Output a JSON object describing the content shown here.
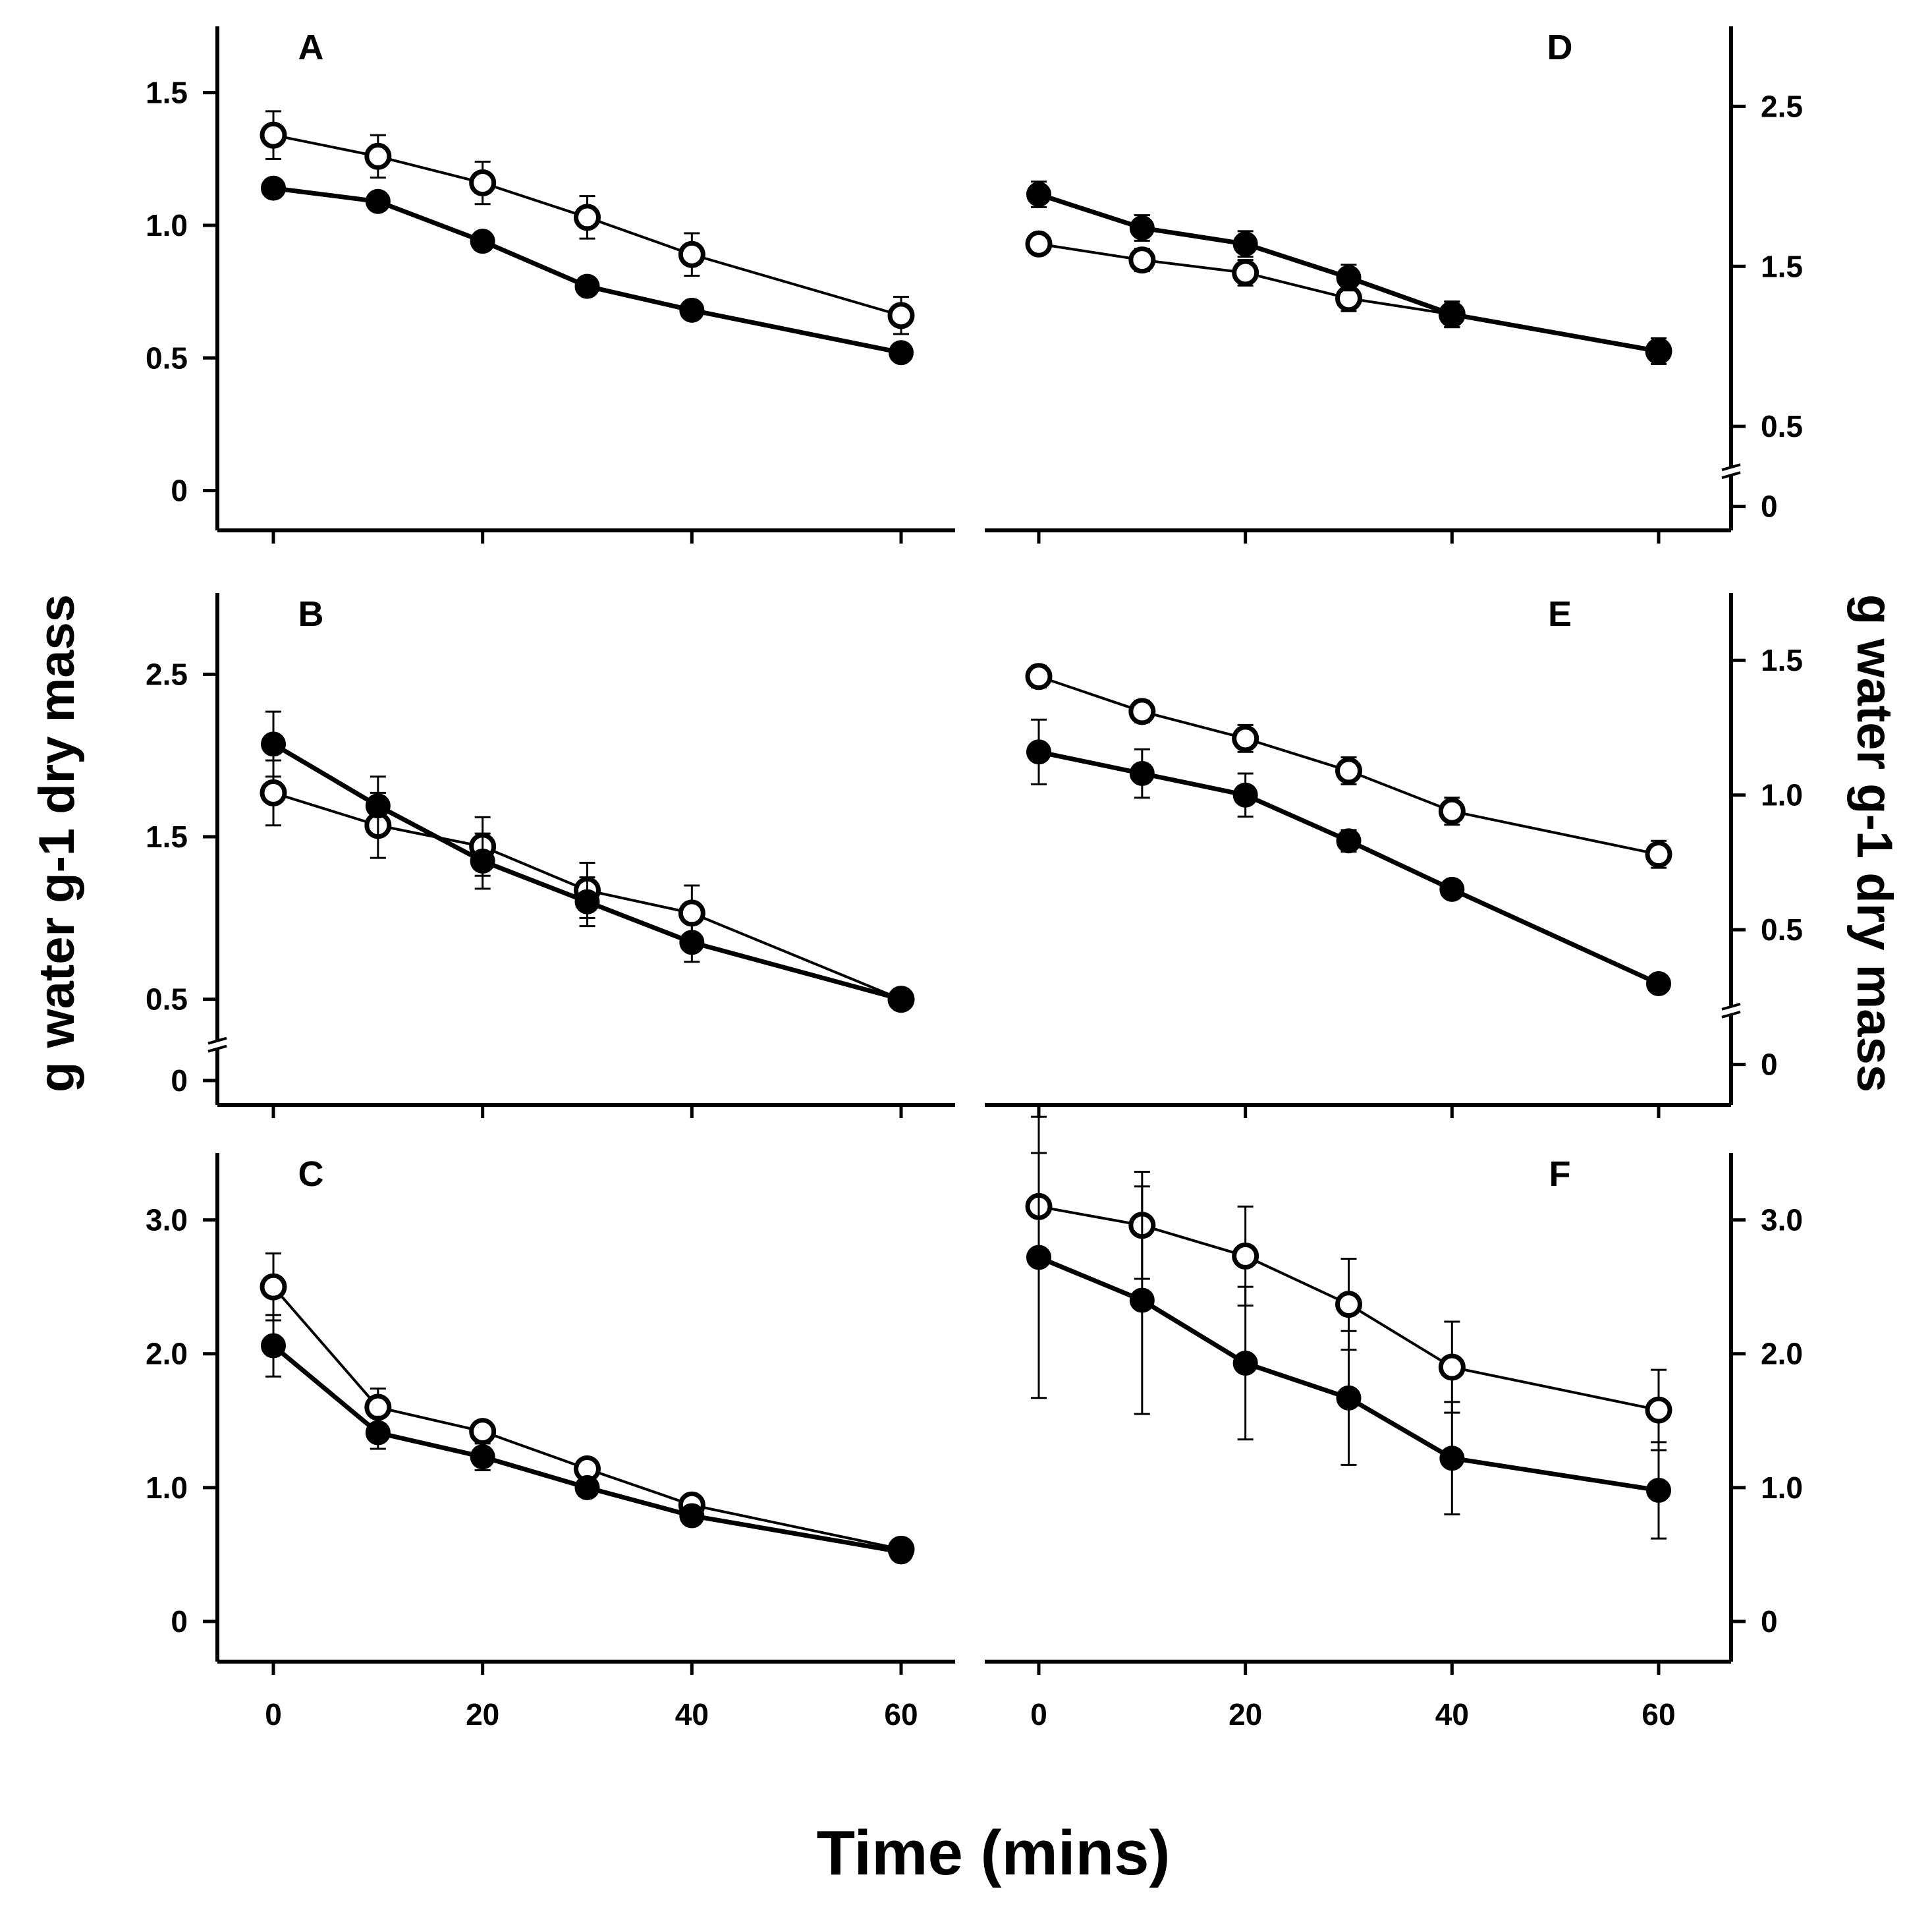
{
  "figure": {
    "ylabel_left": "g water g-1 dry mass",
    "ylabel_right": "g water g-1 dry mass",
    "xlabel": "Time (mins)",
    "x_ticks": [
      "0",
      "20",
      "40",
      "60"
    ]
  },
  "chart_data": [
    {
      "panel": "A",
      "type": "line",
      "axis_side": "left",
      "xlim": [
        -5,
        65
      ],
      "ylim": [
        -0.15,
        1.75
      ],
      "axis_break": false,
      "yticks": [
        0,
        0.5,
        1.0,
        1.5
      ],
      "ytick_labels": [
        "0",
        "0.5",
        "1.0",
        "1.5"
      ],
      "series": [
        {
          "marker": "filled",
          "x": [
            0,
            10,
            20,
            30,
            40,
            60
          ],
          "y": [
            1.14,
            1.09,
            0.94,
            0.77,
            0.68,
            0.52
          ],
          "err": [
            0.02,
            0.02,
            0.02,
            0.02,
            0.02,
            0.02
          ]
        },
        {
          "marker": "open",
          "x": [
            0,
            10,
            20,
            30,
            40,
            60
          ],
          "y": [
            1.34,
            1.26,
            1.16,
            1.03,
            0.89,
            0.66
          ],
          "err": [
            0.09,
            0.08,
            0.08,
            0.08,
            0.08,
            0.07
          ]
        }
      ]
    },
    {
      "panel": "B",
      "type": "line",
      "axis_side": "left",
      "xlim": [
        -5,
        65
      ],
      "ylim": [
        -0.15,
        3.0
      ],
      "axis_break": true,
      "break_at": 0.22,
      "yticks": [
        0,
        0.5,
        1.5,
        2.5
      ],
      "ytick_labels": [
        "0",
        "0.5",
        "1.5",
        "2.5"
      ],
      "series": [
        {
          "marker": "filled",
          "x": [
            0,
            10,
            20,
            30,
            40,
            60
          ],
          "y": [
            2.07,
            1.69,
            1.35,
            1.1,
            0.85,
            0.5
          ],
          "err": [
            0.2,
            0.18,
            0.17,
            0.15,
            0.12,
            0.03
          ]
        },
        {
          "marker": "open",
          "x": [
            0,
            10,
            20,
            30,
            40,
            60
          ],
          "y": [
            1.77,
            1.57,
            1.44,
            1.17,
            1.03,
            0.5
          ],
          "err": [
            0.2,
            0.2,
            0.18,
            0.17,
            0.17,
            0.03
          ]
        }
      ]
    },
    {
      "panel": "C",
      "type": "line",
      "axis_side": "left",
      "xlim": [
        -5,
        65
      ],
      "ylim": [
        -0.3,
        3.5
      ],
      "axis_break": false,
      "yticks": [
        0,
        1.0,
        2.0,
        3.0
      ],
      "ytick_labels": [
        "0",
        "1.0",
        "2.0",
        "3.0"
      ],
      "series": [
        {
          "marker": "filled",
          "x": [
            0,
            10,
            20,
            30,
            40,
            60
          ],
          "y": [
            2.06,
            1.41,
            1.23,
            1.0,
            0.79,
            0.52
          ],
          "err": [
            0.23,
            0.12,
            0.1,
            0.05,
            0.05,
            0.03
          ]
        },
        {
          "marker": "open",
          "x": [
            0,
            10,
            20,
            30,
            40,
            60
          ],
          "y": [
            2.5,
            1.6,
            1.42,
            1.14,
            0.87,
            0.54
          ],
          "err": [
            0.25,
            0.14,
            0.06,
            0.05,
            0.04,
            0.03
          ]
        }
      ]
    },
    {
      "panel": "D",
      "type": "line",
      "axis_side": "right",
      "xlim": [
        -5,
        65
      ],
      "ylim": [
        -0.15,
        3.0
      ],
      "axis_break": true,
      "break_at": 0.22,
      "yticks": [
        0,
        0.5,
        1.5,
        2.5
      ],
      "ytick_labels": [
        "0",
        "0.5",
        "1.5",
        "2.5"
      ],
      "series": [
        {
          "marker": "filled",
          "x": [
            0,
            10,
            20,
            30,
            40,
            60
          ],
          "y": [
            1.95,
            1.74,
            1.64,
            1.43,
            1.2,
            0.97
          ],
          "err": [
            0.08,
            0.08,
            0.08,
            0.08,
            0.08,
            0.08
          ]
        },
        {
          "marker": "open",
          "x": [
            0,
            10,
            20,
            30,
            40,
            60
          ],
          "y": [
            1.64,
            1.54,
            1.46,
            1.3,
            1.2,
            0.97
          ],
          "err": [
            0.05,
            0.07,
            0.08,
            0.08,
            0.08,
            0.08
          ]
        }
      ]
    },
    {
      "panel": "E",
      "type": "line",
      "axis_side": "right",
      "xlim": [
        -5,
        65
      ],
      "ylim": [
        -0.15,
        1.75
      ],
      "axis_break": true,
      "break_at": 0.2,
      "yticks": [
        0,
        0.5,
        1.0,
        1.5
      ],
      "ytick_labels": [
        "0",
        "0.5",
        "1.0",
        "1.5"
      ],
      "series": [
        {
          "marker": "filled",
          "x": [
            0,
            10,
            20,
            30,
            40,
            60
          ],
          "y": [
            1.16,
            1.08,
            1.0,
            0.83,
            0.65,
            0.3
          ],
          "err": [
            0.12,
            0.09,
            0.08,
            0.04,
            0.02,
            0.02
          ]
        },
        {
          "marker": "open",
          "x": [
            0,
            10,
            20,
            30,
            40,
            60
          ],
          "y": [
            1.44,
            1.31,
            1.21,
            1.09,
            0.94,
            0.78
          ],
          "err": [
            0.04,
            0.04,
            0.05,
            0.05,
            0.05,
            0.05
          ]
        }
      ]
    },
    {
      "panel": "F",
      "type": "line",
      "axis_side": "right",
      "xlim": [
        -5,
        65
      ],
      "ylim": [
        -0.3,
        3.5
      ],
      "axis_break": false,
      "yticks": [
        0,
        1.0,
        2.0,
        3.0
      ],
      "ytick_labels": [
        "0",
        "1.0",
        "2.0",
        "3.0"
      ],
      "series": [
        {
          "marker": "filled",
          "x": [
            0,
            10,
            20,
            30,
            40,
            60
          ],
          "y": [
            2.72,
            2.4,
            1.93,
            1.67,
            1.22,
            0.98
          ],
          "err": [
            1.05,
            0.85,
            0.57,
            0.5,
            0.42,
            0.36
          ]
        },
        {
          "marker": "open",
          "x": [
            0,
            10,
            20,
            30,
            40,
            60
          ],
          "y": [
            3.1,
            2.96,
            2.73,
            2.37,
            1.9,
            1.58
          ],
          "err": [
            0.4,
            0.4,
            0.37,
            0.34,
            0.34,
            0.3
          ]
        }
      ]
    }
  ]
}
